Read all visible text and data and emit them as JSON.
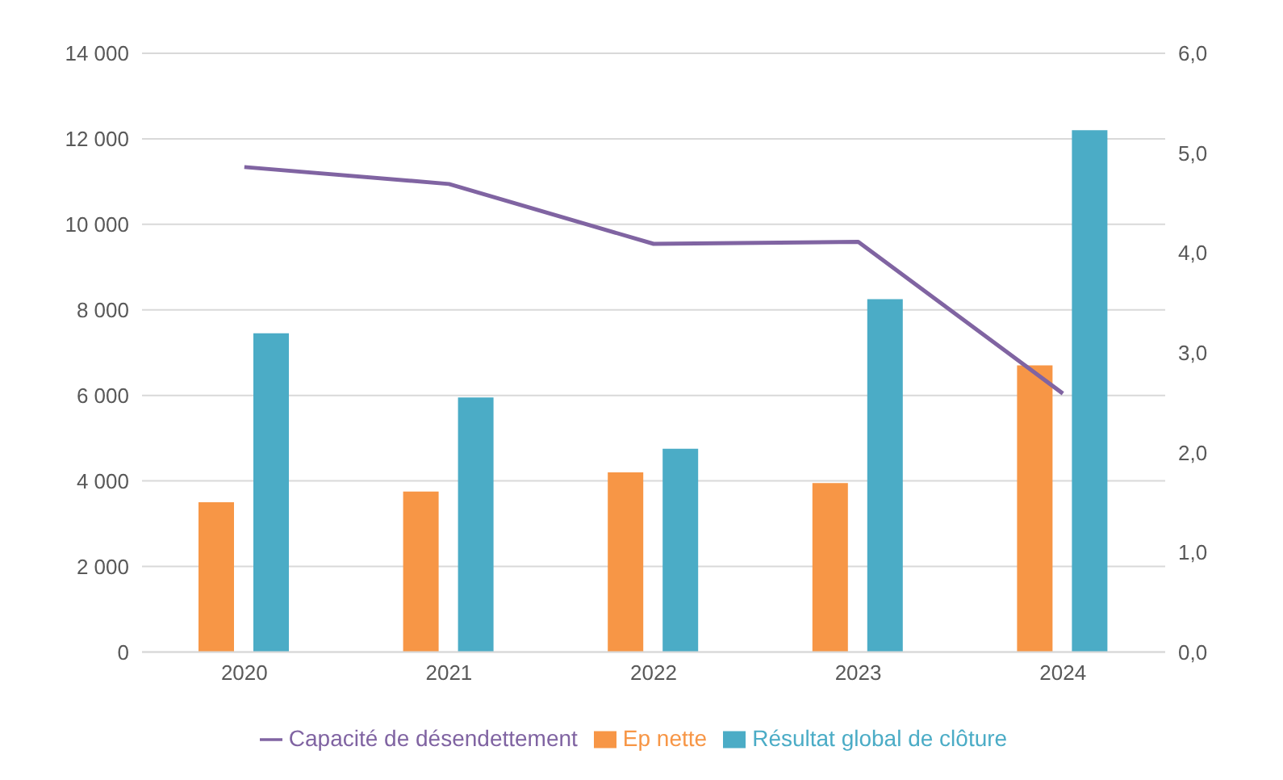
{
  "chart_data": {
    "type": "bar",
    "categories": [
      "2020",
      "2021",
      "2022",
      "2023",
      "2024"
    ],
    "series": [
      {
        "name": "Ep nette",
        "color": "#f79646",
        "values": [
          3500,
          3750,
          4200,
          3950,
          6700
        ]
      },
      {
        "name": "Résultat global de clôture",
        "color": "#4bacc6",
        "values": [
          7450,
          5950,
          4750,
          8250,
          12200
        ]
      },
      {
        "name": "Capacité de désendettement",
        "type": "line",
        "axis": "y2",
        "color": "#8064a2",
        "values": [
          4.86,
          4.69,
          4.09,
          4.11,
          2.59
        ]
      }
    ],
    "ylim": [
      0,
      14000
    ],
    "yticks": [
      {
        "value": 0,
        "label": "0"
      },
      {
        "value": 2000,
        "label": "2 000"
      },
      {
        "value": 4000,
        "label": "4 000"
      },
      {
        "value": 6000,
        "label": "6 000"
      },
      {
        "value": 8000,
        "label": "8 000"
      },
      {
        "value": 10000,
        "label": "10 000"
      },
      {
        "value": 12000,
        "label": "12 000"
      },
      {
        "value": 14000,
        "label": "14 000"
      }
    ],
    "y2lim": [
      0,
      6
    ],
    "y2ticks": [
      {
        "value": 0,
        "label": "0,0"
      },
      {
        "value": 1,
        "label": "1,0"
      },
      {
        "value": 2,
        "label": "2,0"
      },
      {
        "value": 3,
        "label": "3,0"
      },
      {
        "value": 4,
        "label": "4,0"
      },
      {
        "value": 5,
        "label": "5,0"
      },
      {
        "value": 6,
        "label": "6,0"
      }
    ],
    "grid": "y",
    "legend": "bottom",
    "marker": "none",
    "line_style": "solid"
  }
}
